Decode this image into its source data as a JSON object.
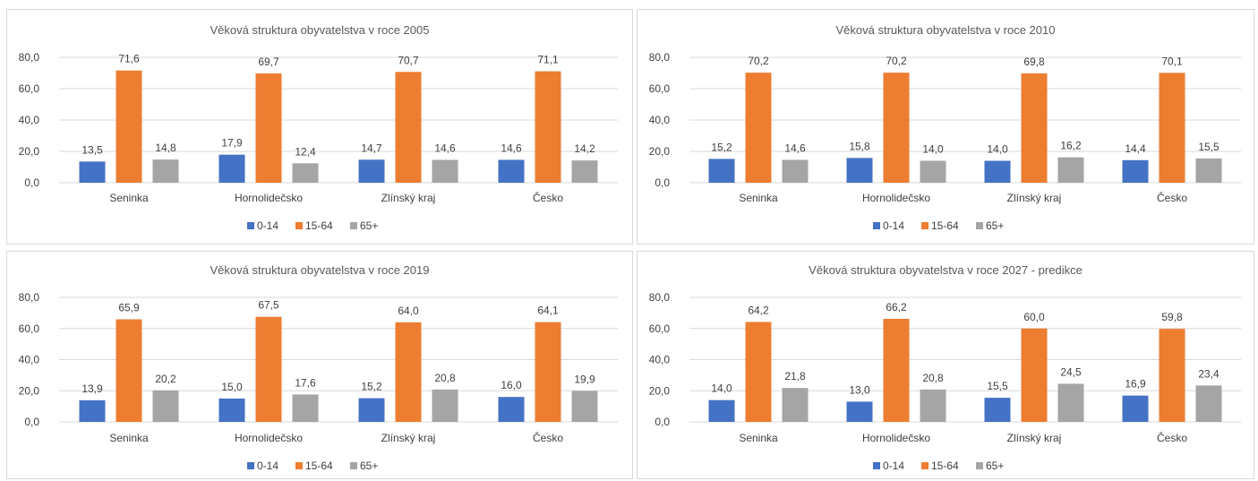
{
  "chart_data": [
    {
      "type": "bar",
      "title": "Věková struktura obyvatelstva v roce 2005",
      "categories": [
        "Seninka",
        "Hornolidečsko",
        "Zlínský kraj",
        "Česko"
      ],
      "series": [
        {
          "name": "0-14",
          "values": [
            13.5,
            17.9,
            14.7,
            14.6
          ]
        },
        {
          "name": "15-64",
          "values": [
            71.6,
            69.7,
            70.7,
            71.1
          ]
        },
        {
          "name": "65+",
          "values": [
            14.8,
            12.4,
            14.6,
            14.2
          ]
        }
      ],
      "ylim": [
        0,
        80
      ],
      "yticks": [
        "0,0",
        "20,0",
        "40,0",
        "60,0",
        "80,0"
      ],
      "grid": true,
      "legend": "bottom"
    },
    {
      "type": "bar",
      "title": "Věková struktura obyvatelstva v roce 2010",
      "categories": [
        "Seninka",
        "Hornolidečsko",
        "Zlínský kraj",
        "Česko"
      ],
      "series": [
        {
          "name": "0-14",
          "values": [
            15.2,
            15.8,
            14.0,
            14.4
          ]
        },
        {
          "name": "15-64",
          "values": [
            70.2,
            70.2,
            69.8,
            70.1
          ]
        },
        {
          "name": "65+",
          "values": [
            14.6,
            14.0,
            16.2,
            15.5
          ]
        }
      ],
      "ylim": [
        0,
        80
      ],
      "yticks": [
        "0,0",
        "20,0",
        "40,0",
        "60,0",
        "80,0"
      ],
      "grid": true,
      "legend": "bottom"
    },
    {
      "type": "bar",
      "title": "Věková struktura obyvatelstva v roce 2019",
      "categories": [
        "Seninka",
        "Hornolidečsko",
        "Zlínský kraj",
        "Česko"
      ],
      "series": [
        {
          "name": "0-14",
          "values": [
            13.9,
            15.0,
            15.2,
            16.0
          ]
        },
        {
          "name": "15-64",
          "values": [
            65.9,
            67.5,
            64.0,
            64.1
          ]
        },
        {
          "name": "65+",
          "values": [
            20.2,
            17.6,
            20.8,
            19.9
          ]
        }
      ],
      "ylim": [
        0,
        80
      ],
      "yticks": [
        "0,0",
        "20,0",
        "40,0",
        "60,0",
        "80,0"
      ],
      "grid": true,
      "legend": "bottom"
    },
    {
      "type": "bar",
      "title": "Věková struktura obyvatelstva v roce 2027 - predikce",
      "categories": [
        "Seninka",
        "Hornolidečsko",
        "Zlínský kraj",
        "Česko"
      ],
      "series": [
        {
          "name": "0-14",
          "values": [
            14.0,
            13.0,
            15.5,
            16.9
          ]
        },
        {
          "name": "15-64",
          "values": [
            64.2,
            66.2,
            60.0,
            59.8
          ]
        },
        {
          "name": "65+",
          "values": [
            21.8,
            20.8,
            24.5,
            23.4
          ]
        }
      ],
      "ylim": [
        0,
        80
      ],
      "yticks": [
        "0,0",
        "20,0",
        "40,0",
        "60,0",
        "80,0"
      ],
      "grid": true,
      "legend": "bottom"
    }
  ],
  "colors": {
    "series": [
      "#4472c4",
      "#ed7d31",
      "#a5a5a5"
    ],
    "grid": "#d9d9d9",
    "text": "#404040"
  }
}
